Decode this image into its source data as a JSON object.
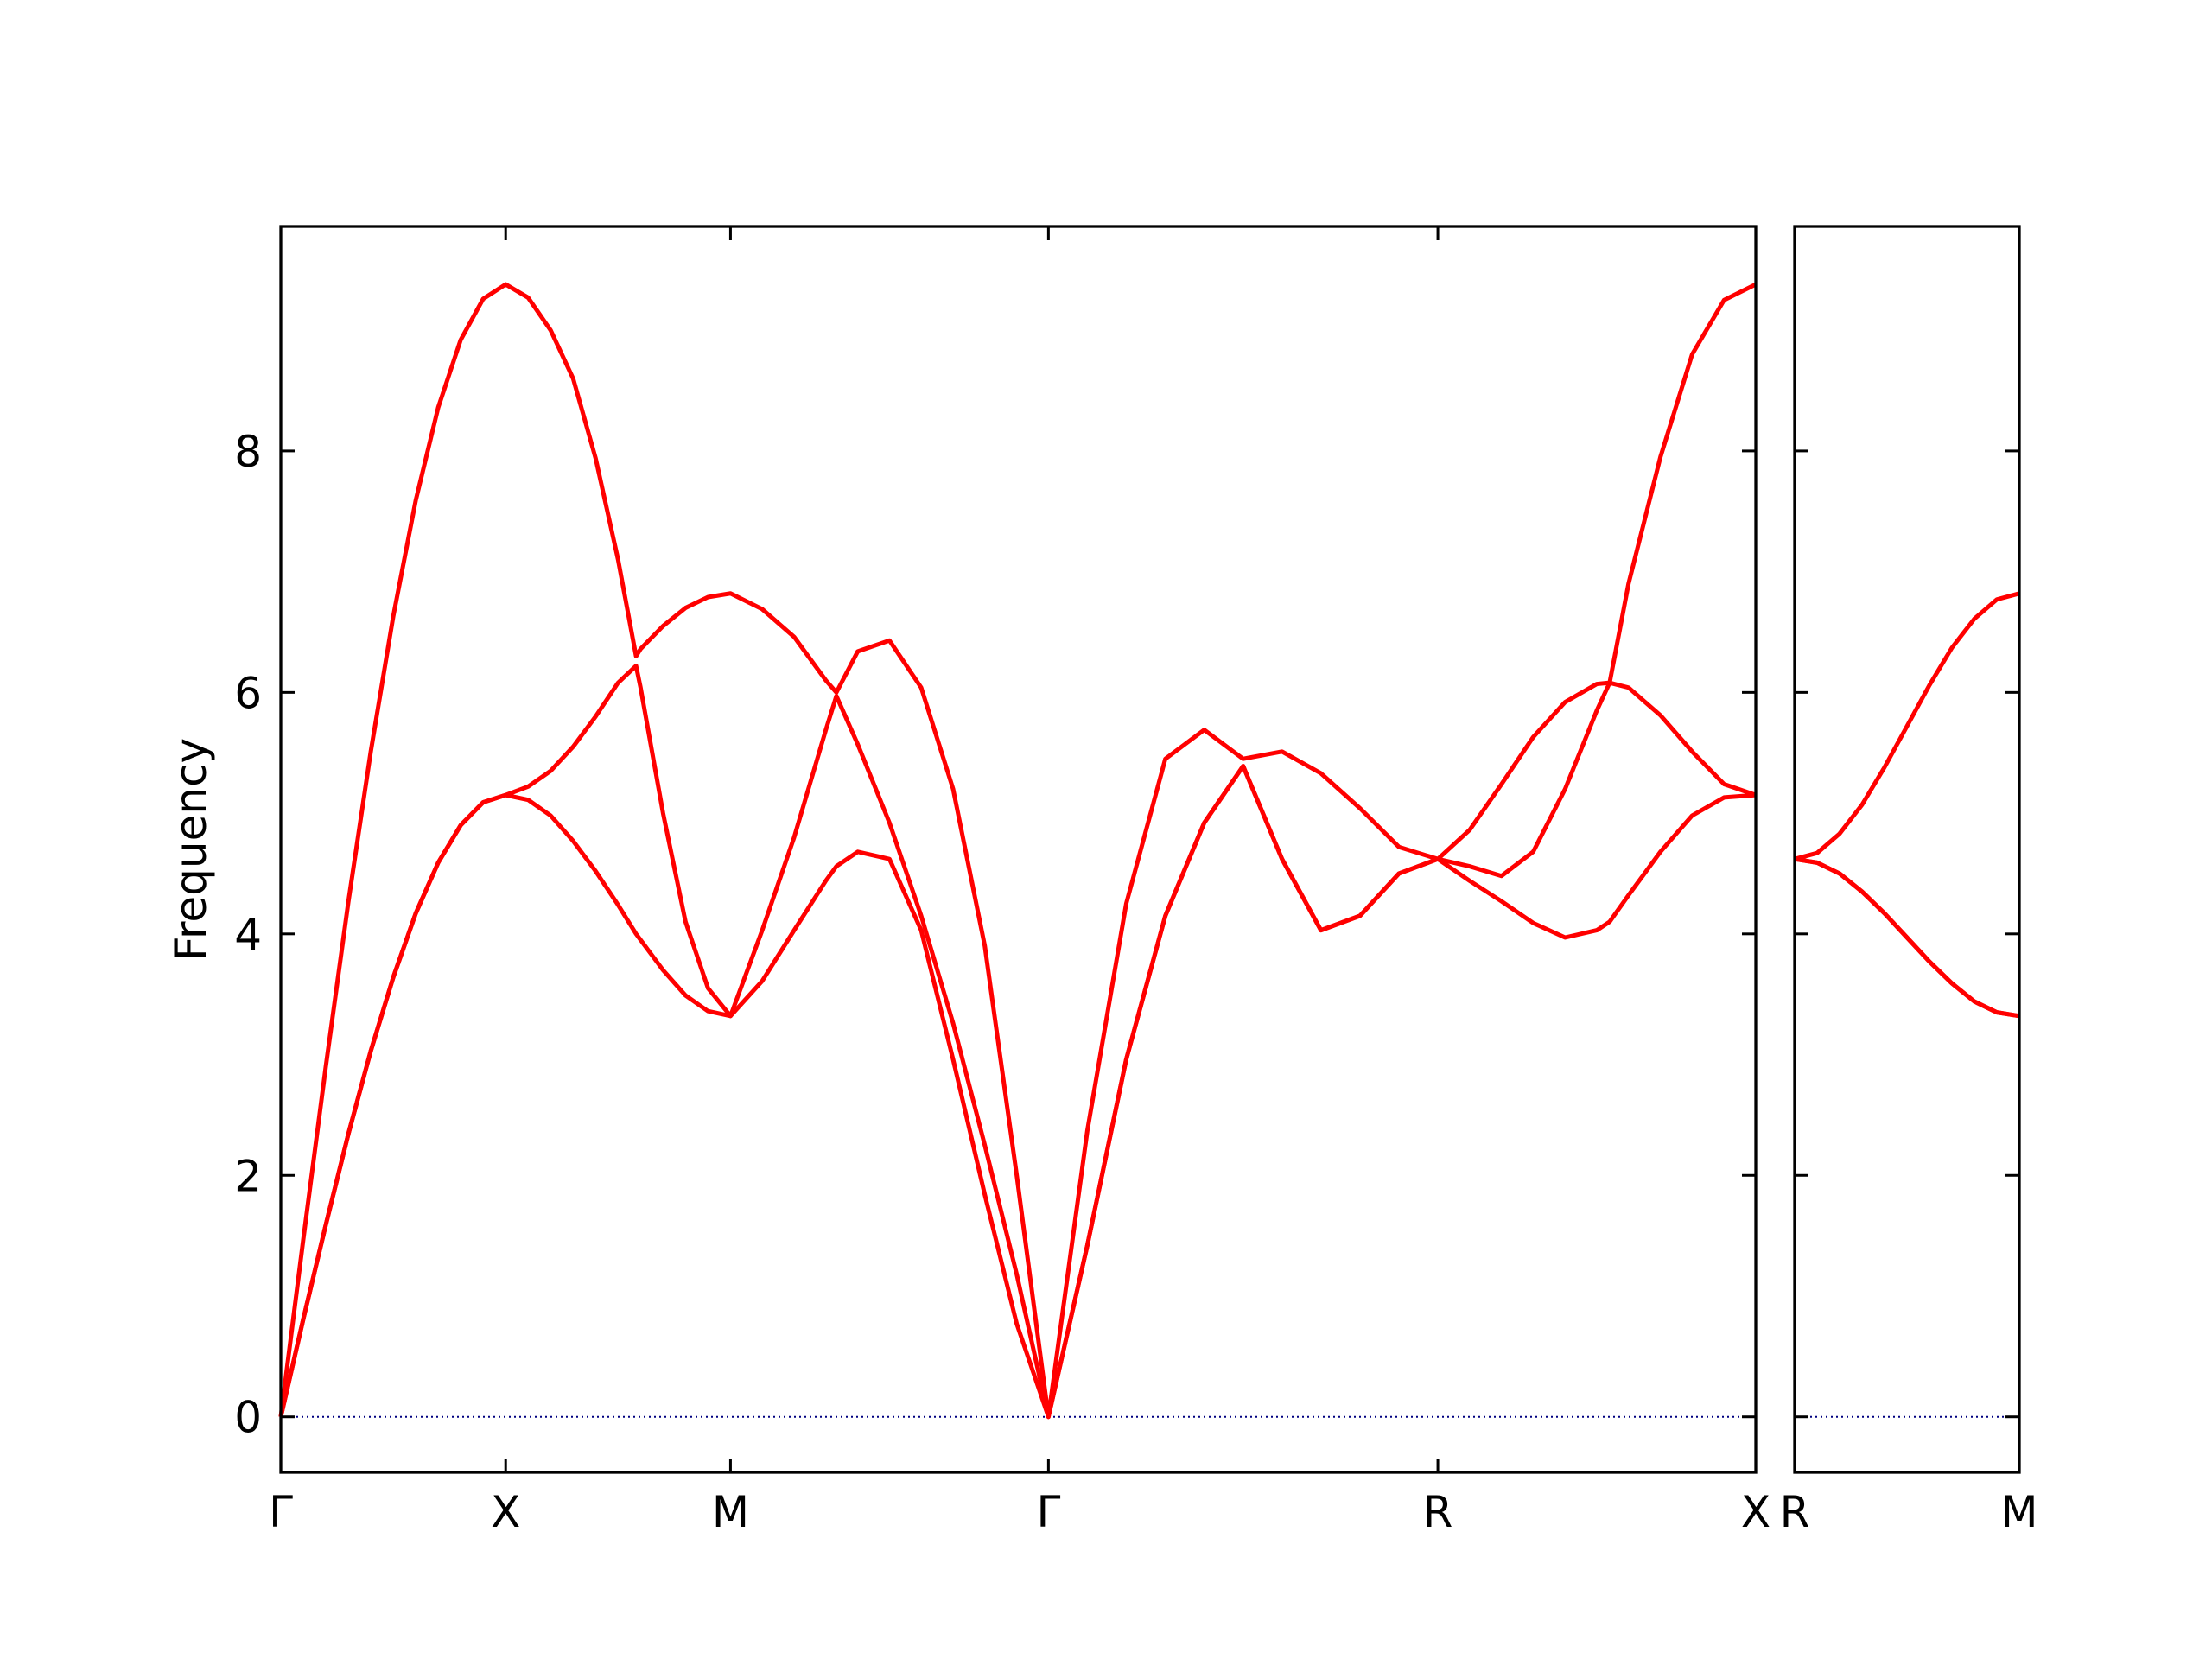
{
  "chart_data": [
    {
      "type": "line",
      "ylabel": "Frequency",
      "x": [
        0,
        0.1,
        0.2,
        0.3,
        0.4,
        0.5,
        0.6,
        0.7,
        0.8,
        0.9,
        1,
        1.1,
        1.2,
        1.3,
        1.4,
        1.5,
        1.58,
        1.6,
        1.7,
        1.8,
        1.9,
        2,
        2.141,
        2.283,
        2.424,
        2.471,
        2.566,
        2.707,
        2.848,
        2.99,
        3.131,
        3.273,
        3.414,
        3.587,
        3.76,
        3.934,
        4.107,
        4.28,
        4.453,
        4.626,
        4.8,
        4.973,
        5.146,
        5.287,
        5.429,
        5.57,
        5.712,
        5.853,
        5.91,
        5.994,
        6.136,
        6.277,
        6.419,
        6.56
      ],
      "series": [
        {
          "color": "#ff0000",
          "values": [
            0,
            0.81,
            1.59,
            2.34,
            3.03,
            3.64,
            4.17,
            4.59,
            4.9,
            5.09,
            5.15,
            5.11,
            4.98,
            4.77,
            4.52,
            4.24,
            4.0,
            3.95,
            3.7,
            3.49,
            3.36,
            3.32,
            3.61,
            4.03,
            4.44,
            4.56,
            4.68,
            4.62,
            4.03,
            2.96,
            1.84,
            0.77,
            0,
            1.42,
            2.96,
            4.15,
            4.92,
            5.39,
            4.62,
            4.03,
            4.15,
            4.5,
            4.62,
            4.44,
            4.27,
            4.09,
            3.97,
            4.03,
            4.1,
            4.32,
            4.68,
            4.98,
            5.13,
            5.15
          ]
        },
        {
          "color": "#ff0000",
          "values": [
            0,
            0.81,
            1.59,
            2.34,
            3.03,
            3.64,
            4.17,
            4.59,
            4.9,
            5.09,
            5.15,
            5.22,
            5.35,
            5.55,
            5.8,
            6.08,
            6.22,
            6.04,
            5.0,
            4.1,
            3.55,
            3.32,
            4.03,
            4.8,
            5.69,
            5.97,
            5.57,
            4.92,
            4.15,
            3.26,
            2.25,
            1.18,
            0,
            1.42,
            2.96,
            4.15,
            4.92,
            5.39,
            4.62,
            4.03,
            4.15,
            4.5,
            4.62,
            4.56,
            4.48,
            4.68,
            5.2,
            5.85,
            6.08,
            6.04,
            5.81,
            5.51,
            5.24,
            5.15
          ]
        },
        {
          "color": "#ff0000",
          "values": [
            0,
            1.47,
            2.9,
            4.26,
            5.51,
            6.63,
            7.59,
            8.36,
            8.92,
            9.26,
            9.38,
            9.27,
            9.0,
            8.6,
            7.94,
            7.1,
            6.3,
            6.36,
            6.55,
            6.7,
            6.79,
            6.82,
            6.69,
            6.46,
            6.1,
            6.0,
            6.34,
            6.43,
            6.04,
            5.2,
            3.9,
            2.0,
            0,
            2.37,
            4.25,
            5.45,
            5.69,
            5.45,
            5.51,
            5.33,
            5.04,
            4.72,
            4.62,
            4.86,
            5.24,
            5.63,
            5.92,
            6.07,
            6.08,
            6.9,
            7.95,
            8.8,
            9.25,
            9.38
          ]
        }
      ],
      "xlim": [
        0,
        6.56
      ],
      "xticks": [
        {
          "value": 0,
          "label": "Γ"
        },
        {
          "value": 1,
          "label": "X"
        },
        {
          "value": 2,
          "label": "M"
        },
        {
          "value": 3.414,
          "label": "Γ"
        },
        {
          "value": 5.146,
          "label": "R"
        },
        {
          "value": 6.56,
          "label": "X"
        }
      ],
      "ylim": [
        -0.46,
        9.86
      ],
      "yticks": [
        0,
        2,
        4,
        6,
        8
      ],
      "hline": 0,
      "hline_color": "#000080"
    },
    {
      "type": "line",
      "x": [
        0,
        0.1,
        0.2,
        0.3,
        0.4,
        0.5,
        0.6,
        0.7,
        0.8,
        0.9,
        1
      ],
      "series": [
        {
          "color": "#ff0000",
          "values": [
            4.62,
            4.59,
            4.5,
            4.35,
            4.17,
            3.97,
            3.77,
            3.59,
            3.44,
            3.35,
            3.32
          ]
        },
        {
          "color": "#ff0000",
          "values": [
            4.62,
            4.59,
            4.5,
            4.35,
            4.17,
            3.97,
            3.77,
            3.59,
            3.44,
            3.35,
            3.32
          ]
        },
        {
          "color": "#ff0000",
          "values": [
            4.62,
            4.67,
            4.83,
            5.07,
            5.38,
            5.72,
            6.06,
            6.37,
            6.61,
            6.77,
            6.82
          ]
        }
      ],
      "xlim": [
        0,
        1
      ],
      "xticks": [
        {
          "value": 0,
          "label": "R"
        },
        {
          "value": 1,
          "label": "M"
        }
      ],
      "ylim": [
        -0.46,
        9.86
      ],
      "yticks": [
        0,
        2,
        4,
        6,
        8
      ],
      "ytick_labels": false,
      "hline": 0,
      "hline_color": "#000080"
    }
  ]
}
